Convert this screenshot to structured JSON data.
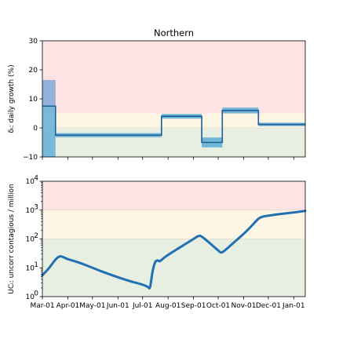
{
  "chart_data": [
    {
      "type": "line",
      "title": "Northern",
      "ylabel": "δᵢ: daily growth (%)",
      "ylim": [
        -10,
        30
      ],
      "yticks": [
        -10,
        0,
        10,
        20,
        30
      ],
      "ytick_labels": [
        "−10",
        "0",
        "10",
        "20",
        "30"
      ],
      "x_domain": [
        "2020-03-01",
        "2021-01-15"
      ],
      "x_tick_dates": [
        "2020-03-01",
        "2020-04-01",
        "2020-05-01",
        "2020-06-01",
        "2020-07-01",
        "2020-08-01",
        "2020-09-01",
        "2020-10-01",
        "2020-11-01",
        "2020-12-01",
        "2021-01-01"
      ],
      "zones": [
        {
          "from": 5,
          "to": 30,
          "color": "#fde3e3"
        },
        {
          "from": 0,
          "to": 5,
          "color": "#fdf5e4"
        },
        {
          "from": -10,
          "to": 0,
          "color": "#e6efe1"
        }
      ],
      "segments": [
        {
          "start": "2020-03-01",
          "end": "2020-03-17",
          "value": 7.5,
          "lower": -10,
          "upper": 16.5
        },
        {
          "start": "2020-03-17",
          "end": "2020-07-24",
          "value": -2.5,
          "lower": -3.2,
          "upper": -1.8
        },
        {
          "start": "2020-07-24",
          "end": "2020-09-11",
          "value": 4.0,
          "lower": 3.2,
          "upper": 4.8
        },
        {
          "start": "2020-09-11",
          "end": "2020-10-06",
          "value": -5.0,
          "lower": -6.7,
          "upper": -3.3
        },
        {
          "start": "2020-10-06",
          "end": "2020-11-19",
          "value": 6.0,
          "lower": 5.0,
          "upper": 7.0
        },
        {
          "start": "2020-11-19",
          "end": "2021-01-15",
          "value": 1.2,
          "lower": 0.6,
          "upper": 1.8
        }
      ],
      "colors": {
        "line": "#1f5f95",
        "band": "#5aabd6",
        "band_top": "#8eaed8"
      }
    },
    {
      "type": "line",
      "ylabel": "UCᵢ: uncorr contagious / million",
      "yscale": "log",
      "ylim": [
        1,
        10000
      ],
      "yticks": [
        1,
        10,
        100,
        1000,
        10000
      ],
      "ytick_exponents": [
        "0",
        "1",
        "2",
        "3",
        "4"
      ],
      "ytick_base": "10",
      "x_tick_labels": [
        "Mar-01",
        "Apr-01",
        "May-01",
        "Jun-01",
        "Jul-01",
        "Aug-01",
        "Sep-01",
        "Oct-01",
        "Nov-01",
        "Dec-01",
        "Jan-01"
      ],
      "x_tick_dates": [
        "2020-03-01",
        "2020-04-01",
        "2020-05-01",
        "2020-06-01",
        "2020-07-01",
        "2020-08-01",
        "2020-09-01",
        "2020-10-01",
        "2020-11-01",
        "2020-12-01",
        "2021-01-01"
      ],
      "zones": [
        {
          "from": 1000,
          "to": 10000,
          "color": "#fde3e3"
        },
        {
          "from": 100,
          "to": 1000,
          "color": "#fdf5e4"
        },
        {
          "from": 1,
          "to": 100,
          "color": "#e6efe1"
        }
      ],
      "series": [
        {
          "color": "#2070b2",
          "points": [
            [
              "2020-03-01",
              5.5
            ],
            [
              "2020-03-08",
              9
            ],
            [
              "2020-03-14",
              15
            ],
            [
              "2020-03-19",
              22
            ],
            [
              "2020-03-23",
              25
            ],
            [
              "2020-03-27",
              23
            ],
            [
              "2020-04-01",
              20
            ],
            [
              "2020-04-15",
              15
            ],
            [
              "2020-05-01",
              10
            ],
            [
              "2020-05-15",
              7
            ],
            [
              "2020-06-01",
              4.7
            ],
            [
              "2020-06-15",
              3.5
            ],
            [
              "2020-07-01",
              2.6
            ],
            [
              "2020-07-07",
              2.2
            ],
            [
              "2020-07-10",
              2.1
            ],
            [
              "2020-07-13",
              7
            ],
            [
              "2020-07-16",
              15
            ],
            [
              "2020-07-19",
              18
            ],
            [
              "2020-07-22",
              17
            ],
            [
              "2020-07-26",
              21
            ],
            [
              "2020-08-01",
              28
            ],
            [
              "2020-08-15",
              50
            ],
            [
              "2020-09-01",
              100
            ],
            [
              "2020-09-07",
              126
            ],
            [
              "2020-09-11",
              120
            ],
            [
              "2020-09-20",
              75
            ],
            [
              "2020-10-01",
              40
            ],
            [
              "2020-10-05",
              34
            ],
            [
              "2020-10-10",
              42
            ],
            [
              "2020-10-20",
              75
            ],
            [
              "2020-11-01",
              150
            ],
            [
              "2020-11-10",
              270
            ],
            [
              "2020-11-19",
              500
            ],
            [
              "2020-11-25",
              600
            ],
            [
              "2020-12-01",
              640
            ],
            [
              "2020-12-15",
              730
            ],
            [
              "2021-01-01",
              830
            ],
            [
              "2021-01-15",
              940
            ]
          ]
        }
      ]
    }
  ]
}
